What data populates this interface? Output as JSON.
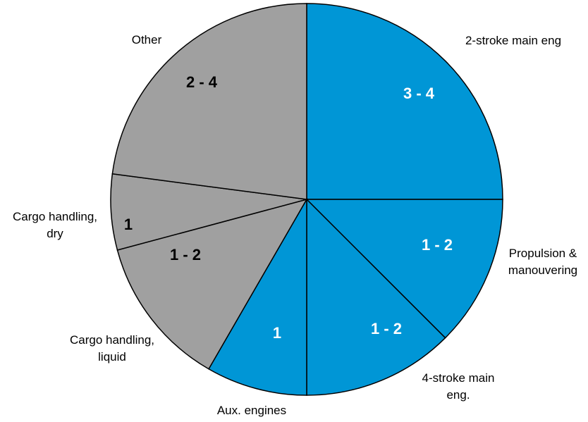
{
  "chart_data": {
    "type": "pie",
    "title": "",
    "slices": [
      {
        "name": "2-stroke main eng",
        "value_label": "3 - 4",
        "share": 0.25,
        "color": "#0096d6",
        "value_color": "#ffffff"
      },
      {
        "name": "Propulsion & manouvering",
        "value_label": "1 - 2",
        "share": 0.125,
        "color": "#0096d6",
        "value_color": "#ffffff"
      },
      {
        "name": "4-stroke main eng.",
        "value_label": "1 - 2",
        "share": 0.125,
        "color": "#0096d6",
        "value_color": "#ffffff"
      },
      {
        "name": "Aux. engines",
        "value_label": "1",
        "share": 0.0833,
        "color": "#0096d6",
        "value_color": "#ffffff"
      },
      {
        "name": "Cargo handling, liquid",
        "value_label": "1 - 2",
        "share": 0.125,
        "color": "#a0a0a0",
        "value_color": "#000000"
      },
      {
        "name": "Cargo handling, dry",
        "value_label": "1",
        "share": 0.0625,
        "color": "#a0a0a0",
        "value_color": "#000000"
      },
      {
        "name": "Other",
        "value_label": "2 - 4",
        "share": 0.2292,
        "color": "#a0a0a0",
        "value_color": "#000000"
      }
    ],
    "category_lines": [
      [
        "2-stroke main eng"
      ],
      [
        "Propulsion &",
        "manouvering"
      ],
      [
        "4-stroke main",
        "eng."
      ],
      [
        "Aux. engines"
      ],
      [
        "Cargo handling,",
        "liquid"
      ],
      [
        "Cargo handling,",
        "dry"
      ],
      [
        "Other"
      ]
    ],
    "start_angle_deg": 0,
    "direction": "clockwise",
    "legend": "none"
  }
}
